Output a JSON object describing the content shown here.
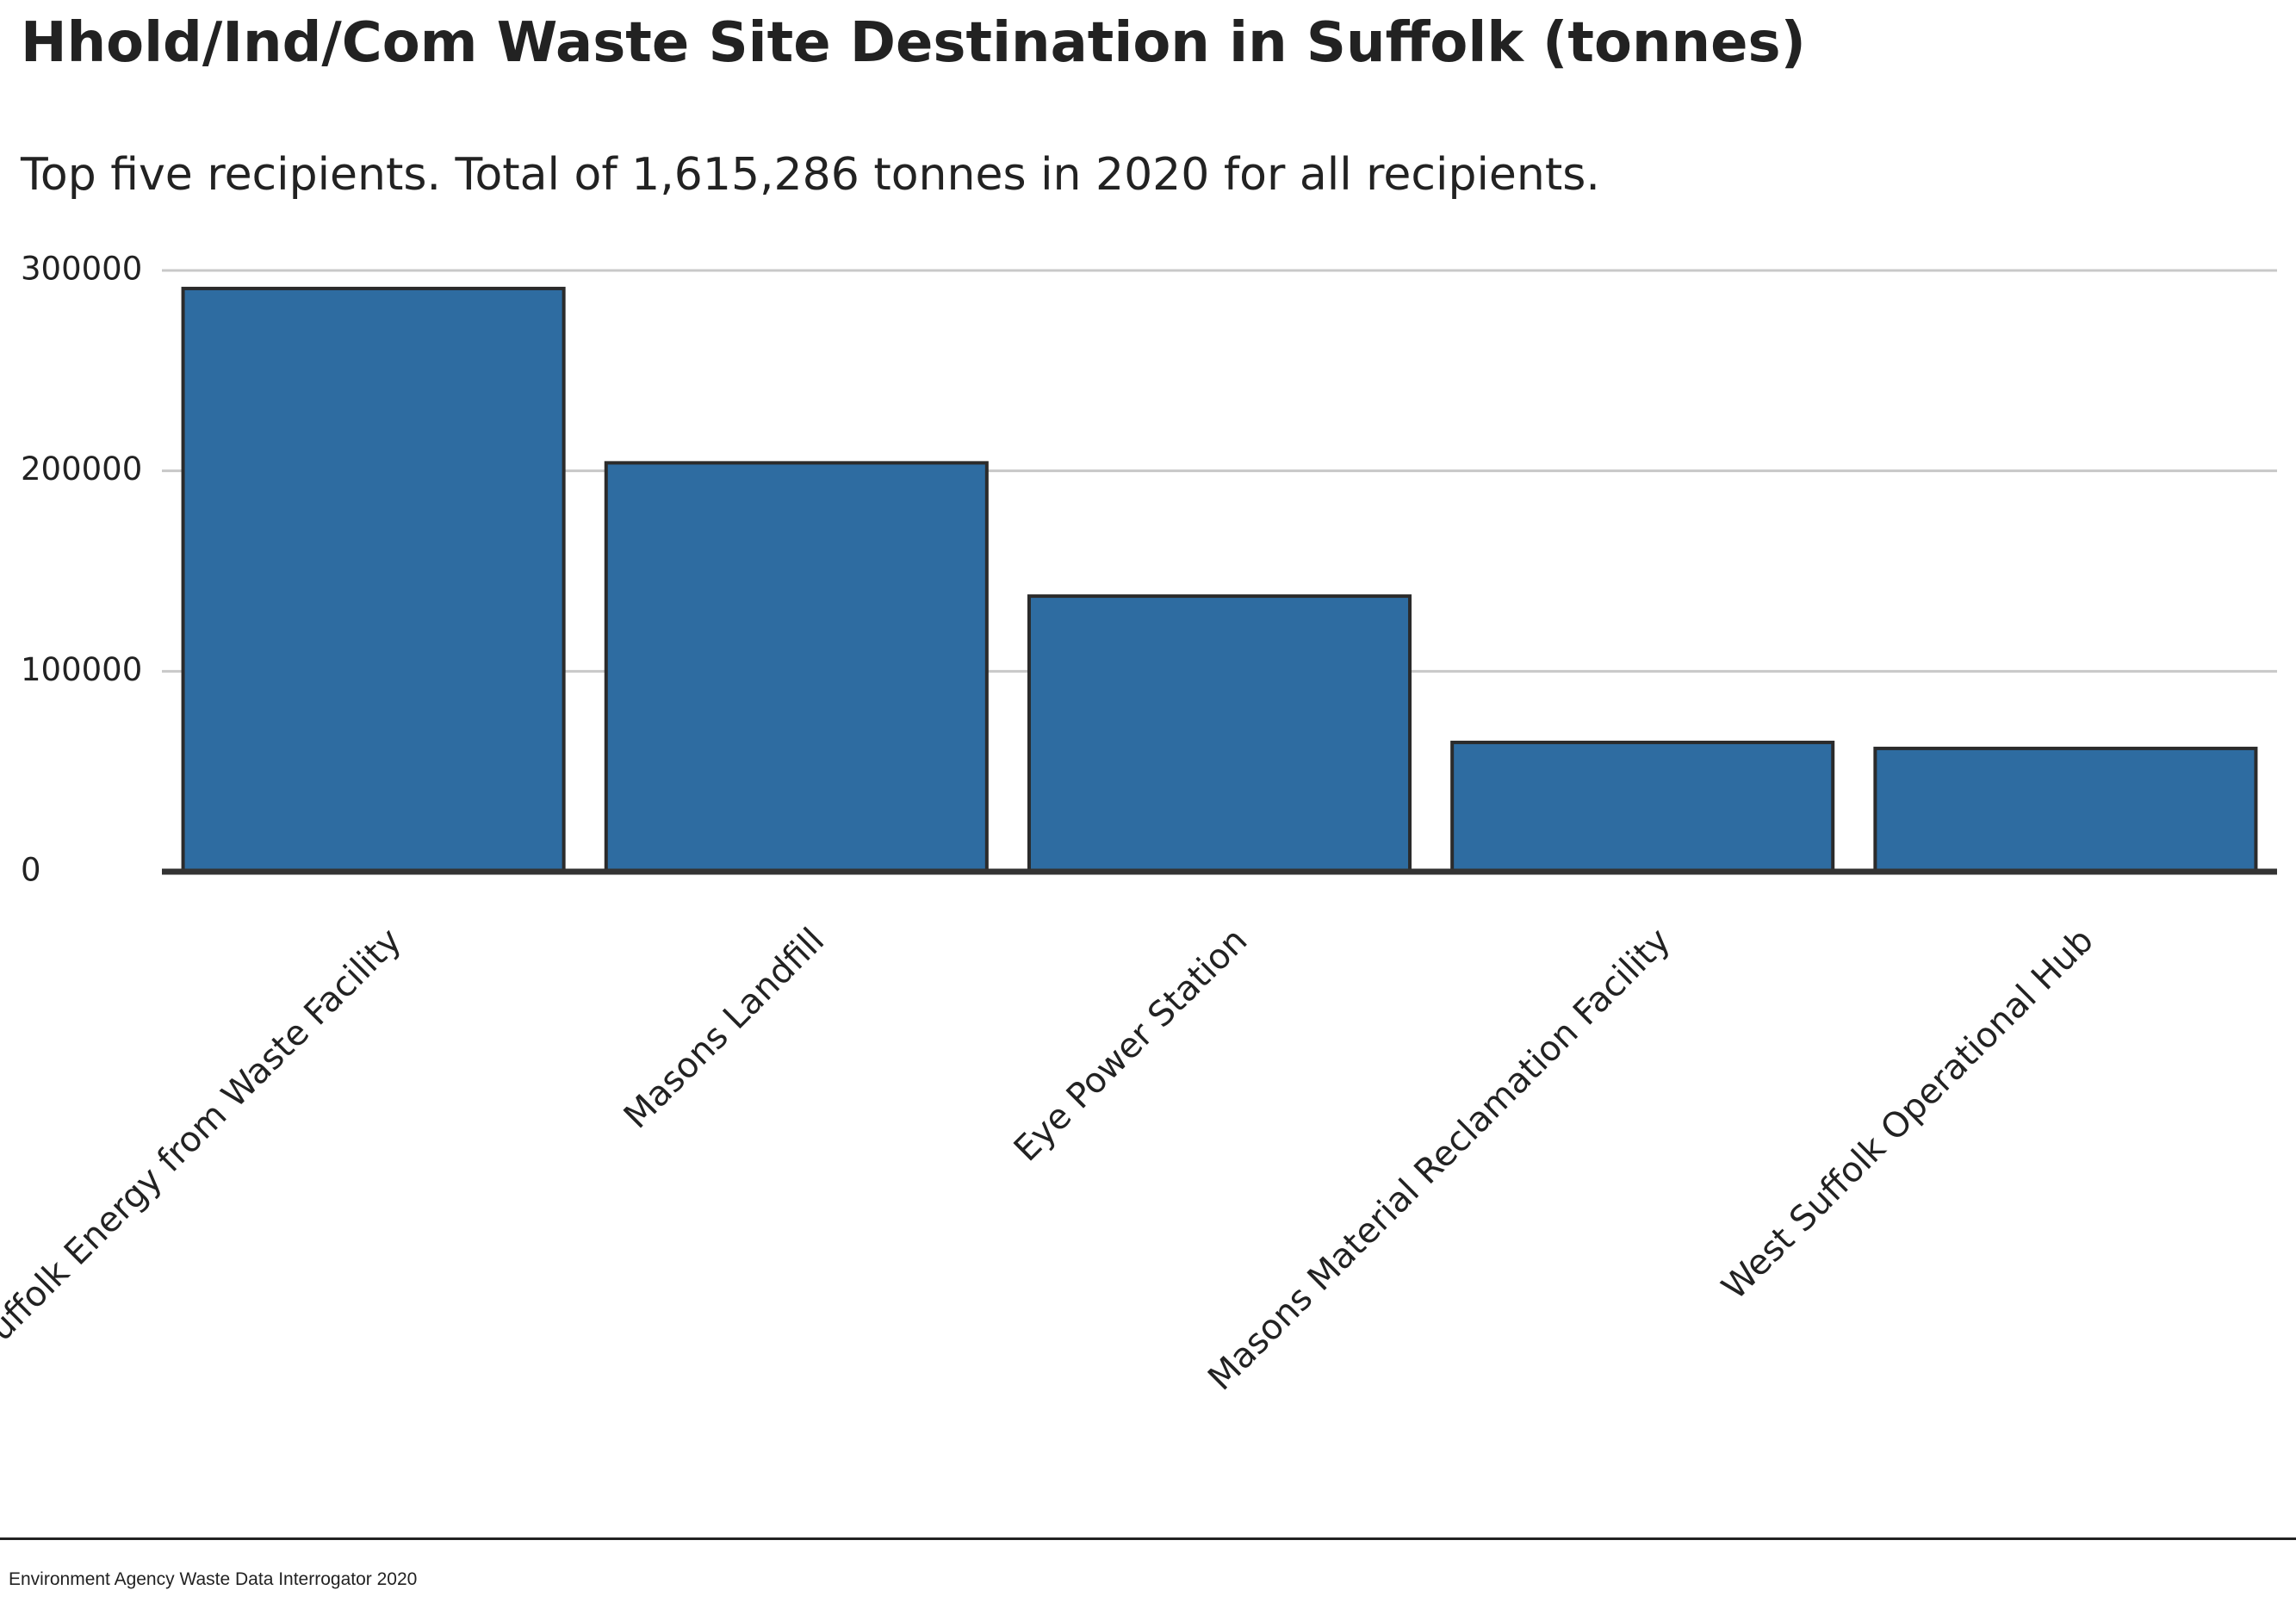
{
  "chart_data": {
    "type": "bar",
    "title": "Hhold/Ind/Com Waste Site Destination in Suffolk (tonnes)",
    "subtitle": "Top five recipients. Total of 1,615,286 tonnes in 2020 for all recipients.",
    "categories": [
      "Suffolk Energy from Waste Facility",
      "Masons Landfill",
      "Eye Power Station",
      "Masons Material Reclamation Facility",
      "West Suffolk Operational Hub"
    ],
    "values": [
      291000,
      204000,
      137500,
      64500,
      61500
    ],
    "xlabel": "",
    "ylabel": "",
    "ylim": [
      0,
      300000
    ],
    "yticks": [
      0,
      100000,
      200000,
      300000
    ],
    "ytick_labels": [
      "0",
      "100000",
      "200000",
      "300000"
    ],
    "grid": true,
    "legend": "none",
    "bar_color": "#2e6ca1",
    "bar_edge_color": "#2b2b2b",
    "grid_color": "#c8c8c8",
    "axis_color": "#333333",
    "text_color": "#222222"
  },
  "footer": {
    "source": "Environment Agency Waste Data Interrogator 2020"
  }
}
